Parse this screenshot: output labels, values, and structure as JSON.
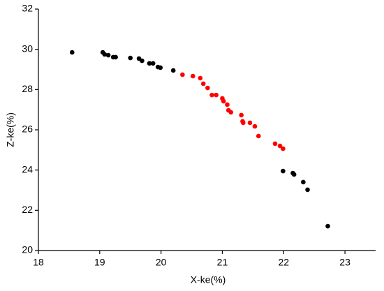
{
  "chart_data": {
    "type": "scatter",
    "xlabel": "X-ke(%)",
    "ylabel": "Z-ke(%)",
    "xlim": [
      18,
      23.5
    ],
    "xticks": [
      18,
      19,
      20,
      21,
      22,
      23
    ],
    "ylim": [
      20,
      32
    ],
    "yticks": [
      20,
      22,
      24,
      26,
      28,
      30,
      32
    ],
    "series": [
      {
        "color": "#000000",
        "x": [
          18.55,
          19.05,
          19.08,
          19.14,
          19.22,
          19.26,
          19.5,
          19.64,
          19.69,
          19.81,
          19.87,
          19.95,
          19.99,
          20.2,
          21.99,
          22.15,
          22.17,
          22.32,
          22.39,
          22.72
        ],
        "values": [
          29.85,
          29.85,
          29.75,
          29.71,
          29.61,
          29.61,
          29.57,
          29.54,
          29.43,
          29.3,
          29.3,
          29.12,
          29.09,
          28.95,
          23.95,
          23.85,
          23.78,
          23.4,
          23.02,
          21.21
        ]
      },
      {
        "color": "#ff0000",
        "x": [
          20.35,
          20.52,
          20.64,
          20.69,
          20.76,
          20.83,
          20.9,
          21.0,
          21.02,
          21.08,
          21.1,
          21.14,
          21.31,
          21.33,
          21.34,
          21.45,
          21.53,
          21.59,
          21.86,
          21.94,
          21.99
        ],
        "values": [
          28.74,
          28.67,
          28.57,
          28.29,
          28.08,
          27.73,
          27.73,
          27.56,
          27.42,
          27.25,
          26.97,
          26.87,
          26.73,
          26.42,
          26.35,
          26.35,
          26.17,
          25.69,
          25.31,
          25.2,
          25.06
        ]
      }
    ]
  }
}
